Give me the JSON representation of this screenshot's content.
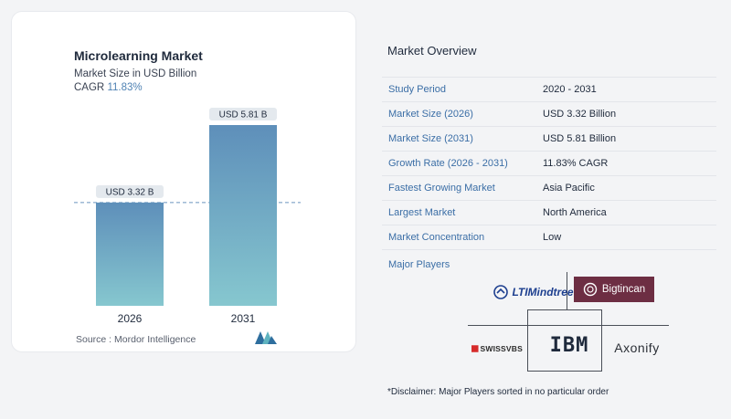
{
  "chart_data": {
    "type": "bar",
    "title": "Microlearning Market",
    "subtitle": "Market Size in USD Billion",
    "cagr_label": "CAGR",
    "cagr_value": "11.83%",
    "categories": [
      "2026",
      "2031"
    ],
    "values": [
      3.32,
      5.81
    ],
    "data_labels": [
      "USD 3.32 B",
      "USD 5.81 B"
    ],
    "ylim": [
      0,
      6.5
    ],
    "grid": false,
    "reference_line": 3.32,
    "colors": {
      "bar_top": "#5e8fba",
      "bar_bottom": "#86c7cf",
      "label_bg": "#e4e9ee",
      "dash": "#6b95bf"
    }
  },
  "source": "Source :  Mordor Intelligence",
  "overview": {
    "title": "Market Overview",
    "rows": [
      {
        "label": "Study Period",
        "value": "2020 - 2031"
      },
      {
        "label": "Market Size (2026)",
        "value": "USD 3.32 Billion"
      },
      {
        "label": "Market Size (2031)",
        "value": "USD 5.81 Billion"
      },
      {
        "label": "Growth Rate (2026 - 2031)",
        "value": "11.83% CAGR"
      },
      {
        "label": "Fastest Growing Market",
        "value": "Asia Pacific"
      },
      {
        "label": "Largest Market",
        "value": "North America"
      },
      {
        "label": "Market Concentration",
        "value": "Low"
      }
    ],
    "players_label": "Major Players",
    "players": [
      "LTIMindtree",
      "Bigtincan",
      "SWISSVBS",
      "IBM",
      "Axonify"
    ]
  },
  "disclaimer": "*Disclaimer: Major Players sorted in no particular order"
}
